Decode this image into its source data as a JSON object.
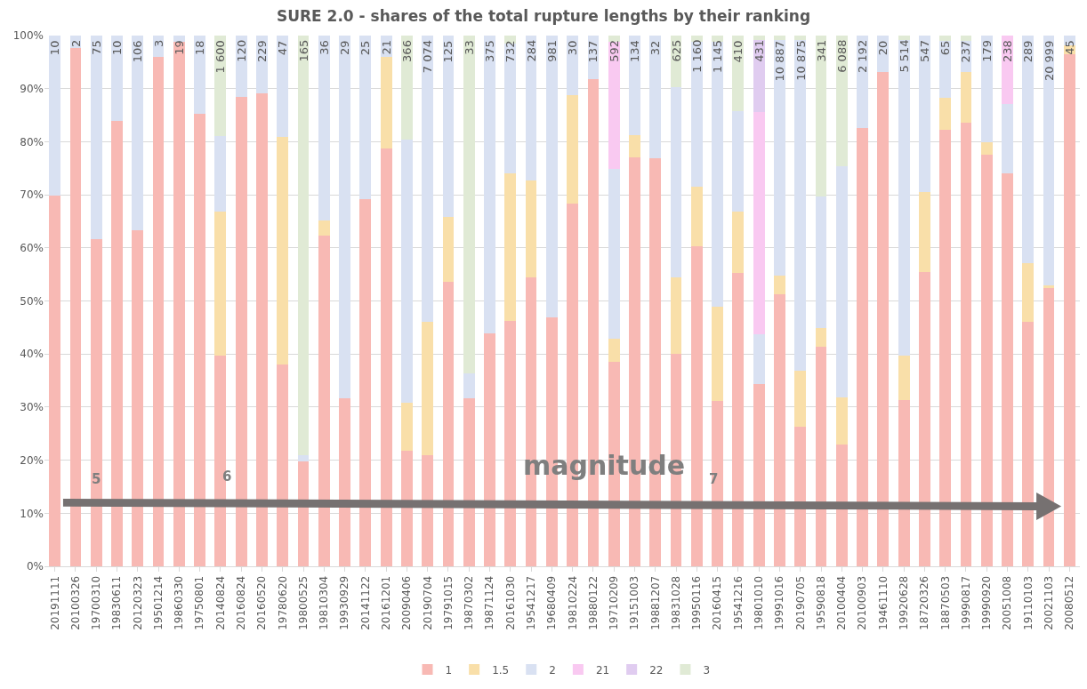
{
  "chart_data": {
    "type": "bar",
    "stacked": true,
    "title": "SURE 2.0 - shares of the total rupture lengths by their ranking",
    "categories": [
      "20191111",
      "20100326",
      "19700310",
      "19830611",
      "20120323",
      "19501214",
      "19860330",
      "19750801",
      "20140824",
      "20160824",
      "20160520",
      "19780620",
      "19800525",
      "19810304",
      "19930929",
      "20141122",
      "20161201",
      "20090406",
      "20190704",
      "19791015",
      "19870302",
      "19871124",
      "20161030",
      "19541217",
      "19680409",
      "19810224",
      "19880122",
      "19710209",
      "19151003",
      "19881207",
      "19831028",
      "19950116",
      "20160415",
      "19541216",
      "19801010",
      "19991016",
      "20190705",
      "19590818",
      "20100404",
      "20100903",
      "19461110",
      "19920628",
      "18720326",
      "18870503",
      "19990817",
      "19990920",
      "20051008",
      "19110103",
      "20021103",
      "20080512"
    ],
    "series": [
      {
        "name": "1",
        "color": "#f8b9b4",
        "values": [
          69.8,
          97.6,
          61.6,
          83.9,
          63.4,
          96.0,
          98.8,
          85.3,
          39.7,
          88.5,
          89.1,
          38.0,
          19.7,
          62.3,
          31.7,
          69.1,
          78.7,
          21.7,
          20.9,
          53.6,
          31.6,
          43.9,
          46.3,
          54.4,
          46.9,
          68.3,
          91.8,
          38.5,
          77.0,
          76.9,
          40.1,
          60.3,
          31.1,
          55.2,
          34.3,
          51.2,
          26.3,
          41.3,
          22.9,
          82.5,
          93.1,
          31.3,
          55.5,
          82.3,
          83.6,
          77.5,
          74.1,
          46.0,
          52.5,
          96.4
        ]
      },
      {
        "name": "1.5",
        "color": "#f9dfa9",
        "values": [
          0,
          0,
          0,
          0,
          0,
          0,
          0,
          0,
          27.1,
          0,
          0,
          42.9,
          0,
          2.9,
          0,
          0,
          17.3,
          9.2,
          25.1,
          12.2,
          0,
          0,
          27.7,
          18.3,
          0,
          20.4,
          0,
          4.4,
          4.2,
          0,
          14.3,
          11.2,
          17.8,
          11.6,
          0,
          3.6,
          10.5,
          3.6,
          8.9,
          0,
          0,
          8.4,
          15.0,
          6.0,
          9.5,
          2.4,
          0,
          11.1,
          0.4,
          1.7
        ]
      },
      {
        "name": "2",
        "color": "#d9e1f2",
        "values": [
          30.2,
          2.4,
          38.4,
          16.1,
          36.6,
          4.0,
          1.2,
          14.7,
          14.2,
          11.5,
          10.9,
          19.1,
          1.2,
          34.8,
          68.3,
          30.9,
          4.0,
          49.5,
          54.0,
          34.2,
          4.7,
          56.1,
          24.5,
          27.3,
          53.1,
          11.3,
          8.2,
          31.9,
          18.8,
          23.1,
          35.9,
          27.3,
          49.9,
          18.9,
          9.4,
          44.3,
          62.3,
          24.8,
          43.6,
          17.5,
          6.9,
          59.4,
          29.5,
          10.7,
          5.9,
          20.1,
          13.0,
          42.9,
          47.1,
          1.9
        ]
      },
      {
        "name": "21",
        "color": "#f9c9f1",
        "values": [
          0,
          0,
          0,
          0,
          0,
          0,
          0,
          0,
          0,
          0,
          0,
          0,
          0,
          0,
          0,
          0,
          0,
          0,
          0,
          0,
          0,
          0,
          0,
          0,
          0,
          0,
          0,
          24.0,
          0,
          0,
          0,
          0,
          0,
          0,
          41.9,
          0,
          0,
          0,
          0,
          0,
          0,
          0,
          0,
          0,
          0,
          0,
          12.9,
          0,
          0,
          0
        ]
      },
      {
        "name": "22",
        "color": "#e0ccf0",
        "values": [
          0,
          0,
          0,
          0,
          0,
          0,
          0,
          0,
          0,
          0,
          0,
          0,
          0,
          0,
          0,
          0,
          0,
          0,
          0,
          0,
          0,
          0,
          0,
          0,
          0,
          0,
          0,
          0,
          0,
          0,
          0,
          0,
          0,
          0,
          13.5,
          0,
          0,
          0,
          0,
          0,
          0,
          0,
          0,
          0,
          0,
          0,
          0,
          0,
          0,
          0
        ]
      },
      {
        "name": "3",
        "color": "#e0ead5",
        "values": [
          0,
          0,
          0,
          0,
          0,
          0,
          0,
          0,
          19.0,
          0,
          0,
          0,
          79.1,
          0,
          0,
          0,
          0,
          19.6,
          0,
          0,
          63.7,
          0,
          1.5,
          0,
          0,
          0,
          0,
          1.2,
          0,
          0,
          9.7,
          1.2,
          1.2,
          14.3,
          0.9,
          0.9,
          0.9,
          30.3,
          24.6,
          0,
          0,
          0.9,
          0,
          1.0,
          1.0,
          0,
          0,
          0,
          0,
          0
        ]
      }
    ],
    "ylim": [
      0,
      100
    ],
    "yticks": [
      {
        "value": 0,
        "label": "0%"
      },
      {
        "value": 10,
        "label": "10%"
      },
      {
        "value": 20,
        "label": "20%"
      },
      {
        "value": 30,
        "label": "30%"
      },
      {
        "value": 40,
        "label": "40%"
      },
      {
        "value": 50,
        "label": "50%"
      },
      {
        "value": 60,
        "label": "60%"
      },
      {
        "value": 70,
        "label": "70%"
      },
      {
        "value": 80,
        "label": "80%"
      },
      {
        "value": 90,
        "label": "90%"
      },
      {
        "value": 100,
        "label": "100%"
      }
    ],
    "grid": "y",
    "legend": "bottom",
    "annotations": [
      "magnitude",
      "5",
      "6",
      "7",
      {
        "text": "10",
        "x": "20191111",
        "y": 100
      },
      {
        "text": "2",
        "x": "20100326",
        "y": 100
      },
      {
        "text": "75",
        "x": "19700310",
        "y": 100
      },
      {
        "text": "10",
        "x": "19830611",
        "y": 100
      },
      {
        "text": "106",
        "x": "20120323",
        "y": 100
      },
      {
        "text": "3",
        "x": "19501214",
        "y": 100
      },
      {
        "text": "19",
        "x": "19860330",
        "y": 100
      },
      {
        "text": "18",
        "x": "19750801",
        "y": 100
      },
      {
        "text": "1 600",
        "x": "20140824",
        "y": 100
      },
      {
        "text": "120",
        "x": "20160824",
        "y": 100
      },
      {
        "text": "229",
        "x": "20160520",
        "y": 100
      },
      {
        "text": "47",
        "x": "19780620",
        "y": 100
      },
      {
        "text": "165",
        "x": "19800525",
        "y": 100
      },
      {
        "text": "36",
        "x": "19810304",
        "y": 100
      },
      {
        "text": "29",
        "x": "19930929",
        "y": 100
      },
      {
        "text": "25",
        "x": "20141122",
        "y": 100
      },
      {
        "text": "21",
        "x": "20161201",
        "y": 100
      },
      {
        "text": "366",
        "x": "20090406",
        "y": 100
      },
      {
        "text": "7 074",
        "x": "20190704",
        "y": 100
      },
      {
        "text": "125",
        "x": "19791015",
        "y": 100
      },
      {
        "text": "33",
        "x": "19870302",
        "y": 100
      },
      {
        "text": "375",
        "x": "19871124",
        "y": 100
      },
      {
        "text": "732",
        "x": "20161030",
        "y": 100
      },
      {
        "text": "284",
        "x": "19541217",
        "y": 100
      },
      {
        "text": "981",
        "x": "19680409",
        "y": 100
      },
      {
        "text": "30",
        "x": "19810224",
        "y": 100
      },
      {
        "text": "137",
        "x": "19880122",
        "y": 100
      },
      {
        "text": "592",
        "x": "19710209",
        "y": 100
      },
      {
        "text": "134",
        "x": "19151003",
        "y": 100
      },
      {
        "text": "32",
        "x": "19881207",
        "y": 100
      },
      {
        "text": "625",
        "x": "19831028",
        "y": 100
      },
      {
        "text": "1 160",
        "x": "19950116",
        "y": 100
      },
      {
        "text": "1 145",
        "x": "20160415",
        "y": 100
      },
      {
        "text": "410",
        "x": "19541216",
        "y": 100
      },
      {
        "text": "431",
        "x": "19801010",
        "y": 100
      },
      {
        "text": "10 887",
        "x": "19991016",
        "y": 100
      },
      {
        "text": "10 875",
        "x": "20190705",
        "y": 100
      },
      {
        "text": "341",
        "x": "19590818",
        "y": 100
      },
      {
        "text": "6 088",
        "x": "20100404",
        "y": 100
      },
      {
        "text": "2 192",
        "x": "20100903",
        "y": 100
      },
      {
        "text": "20",
        "x": "19461110",
        "y": 100
      },
      {
        "text": "5 514",
        "x": "19920628",
        "y": 100
      },
      {
        "text": "547",
        "x": "18720326",
        "y": 100
      },
      {
        "text": "65",
        "x": "18870503",
        "y": 100
      },
      {
        "text": "237",
        "x": "19990817",
        "y": 100
      },
      {
        "text": "179",
        "x": "19990920",
        "y": 100
      },
      {
        "text": "238",
        "x": "20051008",
        "y": 100
      },
      {
        "text": "289",
        "x": "19110103",
        "y": 100
      },
      {
        "text": "20 999",
        "x": "20021103",
        "y": 100
      },
      {
        "text": "45",
        "x": "20080512",
        "y": 100
      }
    ]
  }
}
